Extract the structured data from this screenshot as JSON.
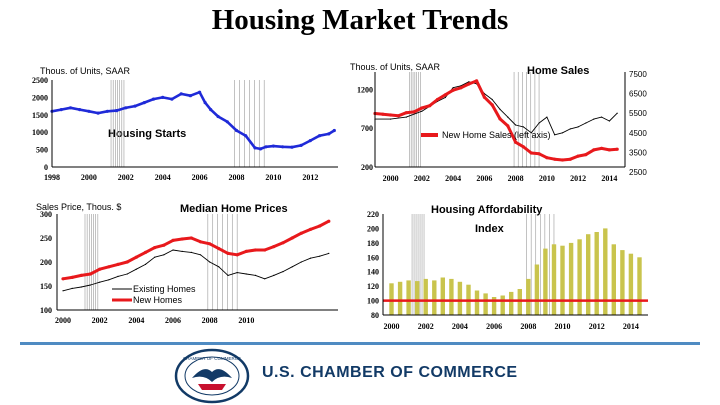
{
  "slide_title": "Housing Market Trends",
  "footer_text": "U.S. CHAMBER OF COMMERCE",
  "seal_text": "CHAMBER OF COMMERCE OF THE UNITED STATES OF AMERICA",
  "colors": {
    "red": "#e8191c",
    "blue": "#1f2ad8",
    "olive": "#c9c44d",
    "black": "#000000",
    "recession": "#9a9a9a",
    "footer_rule": "#4f8bc2",
    "footer_text": "#123a66"
  },
  "chart_data": [
    {
      "id": "housing-starts",
      "type": "line",
      "unit_label": "Thous. of Units, SAAR",
      "annotations": [
        "Housing Starts"
      ],
      "xlim": [
        1998,
        2013.5
      ],
      "ylim": [
        0,
        2500
      ],
      "x_ticks": [
        "1998",
        "2000",
        "2002",
        "2004",
        "2006",
        "2008",
        "2010",
        "2012"
      ],
      "y_ticks": [
        "0",
        "500",
        "1000",
        "1500",
        "2000",
        "2500"
      ],
      "series": [
        {
          "color": "blue",
          "x": [
            1998,
            1998.5,
            1999,
            1999.5,
            2000,
            2000.5,
            2001,
            2001.5,
            2002,
            2002.5,
            2003,
            2003.5,
            2004,
            2004.5,
            2005,
            2005.5,
            2006,
            2006.3,
            2006.6,
            2007,
            2007.5,
            2008,
            2008.5,
            2009,
            2009.3,
            2009.6,
            2010,
            2010.5,
            2011,
            2011.5,
            2012,
            2012.5,
            2013,
            2013.3
          ],
          "y": [
            1600,
            1650,
            1700,
            1650,
            1600,
            1550,
            1600,
            1620,
            1700,
            1750,
            1850,
            1950,
            2000,
            1950,
            2100,
            2050,
            2150,
            1850,
            1650,
            1450,
            1300,
            1050,
            900,
            550,
            520,
            580,
            600,
            580,
            570,
            620,
            760,
            900,
            950,
            1050
          ]
        }
      ]
    },
    {
      "id": "home-sales",
      "type": "line",
      "unit_label": "Thous. of Units, SAAR",
      "annotations": [
        "Home Sales"
      ],
      "legend": [
        {
          "label": "New Home Sales (left axis)",
          "color": "red"
        }
      ],
      "xlim": [
        1999,
        2015
      ],
      "ylim_left": [
        200,
        1450
      ],
      "ylim_right": [
        2500,
        7500
      ],
      "x_ticks": [
        "2000",
        "2002",
        "2004",
        "2006",
        "2008",
        "2010",
        "2012",
        "2014"
      ],
      "y_ticks_left": [
        "200",
        "700",
        "1200"
      ],
      "y_ticks_right": [
        "2500",
        "3500",
        "4500",
        "5500",
        "6500",
        "7500"
      ],
      "series": [
        {
          "color": "red",
          "axis": "left",
          "x": [
            1999,
            1999.5,
            2000,
            2000.5,
            2001,
            2001.5,
            2002,
            2002.5,
            2003,
            2003.5,
            2004,
            2004.5,
            2005,
            2005.5,
            2006,
            2006.5,
            2007,
            2007.5,
            2008,
            2008.5,
            2009,
            2009.5,
            2010,
            2010.5,
            2011,
            2011.5,
            2012,
            2012.5,
            2013,
            2013.5,
            2014,
            2014.5
          ],
          "y": [
            890,
            880,
            870,
            860,
            900,
            910,
            960,
            990,
            1070,
            1130,
            1190,
            1220,
            1270,
            1310,
            1100,
            1000,
            820,
            730,
            520,
            460,
            380,
            370,
            320,
            300,
            290,
            300,
            340,
            360,
            420,
            440,
            420,
            430
          ]
        },
        {
          "color": "black",
          "axis": "right",
          "x": [
            1999,
            2000,
            2001,
            2002,
            2003,
            2003.5,
            2004,
            2004.5,
            2005,
            2005.5,
            2006,
            2006.5,
            2007,
            2007.5,
            2008,
            2008.5,
            2009,
            2009.5,
            2010,
            2010.5,
            2011,
            2011.5,
            2012,
            2012.5,
            2013,
            2013.5,
            2014,
            2014.5
          ],
          "y": [
            5200,
            5200,
            5300,
            5600,
            6100,
            6300,
            6800,
            6900,
            7100,
            7000,
            6500,
            6200,
            5700,
            5300,
            4900,
            4800,
            4500,
            5000,
            5300,
            4400,
            4500,
            4700,
            4800,
            5000,
            5200,
            5300,
            5100,
            5500
          ]
        }
      ]
    },
    {
      "id": "median-home-prices",
      "type": "line",
      "unit_label": "Sales Price, Thous. $",
      "annotations": [
        "Median Home Prices"
      ],
      "legend": [
        {
          "label": "Existing Homes",
          "color": "black"
        },
        {
          "label": "New Homes",
          "color": "red"
        }
      ],
      "xlim": [
        2000,
        2015
      ],
      "ylim": [
        100,
        300
      ],
      "x_ticks": [
        "2000",
        "2002",
        "2004",
        "2006",
        "2008",
        "2010"
      ],
      "y_ticks": [
        "100",
        "150",
        "200",
        "250",
        "300"
      ],
      "series": [
        {
          "color": "red",
          "x": [
            2000,
            2000.5,
            2001,
            2001.5,
            2002,
            2002.5,
            2003,
            2003.5,
            2004,
            2004.5,
            2005,
            2005.5,
            2006,
            2006.5,
            2007,
            2007.5,
            2008,
            2008.5,
            2009,
            2009.5,
            2010,
            2010.5,
            2011,
            2011.5,
            2012,
            2012.5,
            2013,
            2013.5,
            2014,
            2014.5
          ],
          "y": [
            165,
            168,
            172,
            175,
            185,
            190,
            195,
            200,
            210,
            220,
            230,
            235,
            245,
            248,
            250,
            242,
            238,
            228,
            218,
            215,
            222,
            225,
            225,
            232,
            240,
            250,
            260,
            268,
            275,
            285
          ]
        },
        {
          "color": "black",
          "x": [
            2000,
            2000.5,
            2001,
            2001.5,
            2002,
            2002.5,
            2003,
            2003.5,
            2004,
            2004.5,
            2005,
            2005.5,
            2006,
            2006.5,
            2007,
            2007.5,
            2008,
            2008.5,
            2009,
            2009.5,
            2010,
            2010.5,
            2011,
            2011.5,
            2012,
            2012.5,
            2013,
            2013.5,
            2014,
            2014.5
          ],
          "y": [
            140,
            145,
            148,
            152,
            158,
            163,
            170,
            175,
            185,
            195,
            210,
            215,
            225,
            222,
            220,
            215,
            200,
            190,
            172,
            178,
            175,
            172,
            165,
            172,
            180,
            190,
            200,
            208,
            212,
            218
          ]
        }
      ]
    },
    {
      "id": "housing-affordability-index",
      "type": "bar",
      "annotations": [
        "Housing Affordability Index"
      ],
      "xlim": [
        1999.5,
        2015
      ],
      "ylim": [
        80,
        220
      ],
      "x_ticks": [
        "2000",
        "2002",
        "2004",
        "2006",
        "2008",
        "2010",
        "2012",
        "2014"
      ],
      "y_ticks": [
        "80",
        "100",
        "120",
        "140",
        "160",
        "180",
        "200",
        "220"
      ],
      "reference_line": {
        "value": 100,
        "color": "red"
      },
      "bar_color": "olive",
      "x": [
        2000,
        2000.5,
        2001,
        2001.5,
        2002,
        2002.5,
        2003,
        2003.5,
        2004,
        2004.5,
        2005,
        2005.5,
        2006,
        2006.5,
        2007,
        2007.5,
        2008,
        2008.5,
        2009,
        2009.5,
        2010,
        2010.5,
        2011,
        2011.5,
        2012,
        2012.5,
        2013,
        2013.5,
        2014,
        2014.5
      ],
      "values": [
        124,
        126,
        128,
        127,
        130,
        128,
        132,
        130,
        126,
        122,
        114,
        110,
        105,
        107,
        112,
        116,
        130,
        150,
        172,
        178,
        176,
        180,
        185,
        192,
        195,
        200,
        178,
        170,
        165,
        160
      ]
    }
  ]
}
